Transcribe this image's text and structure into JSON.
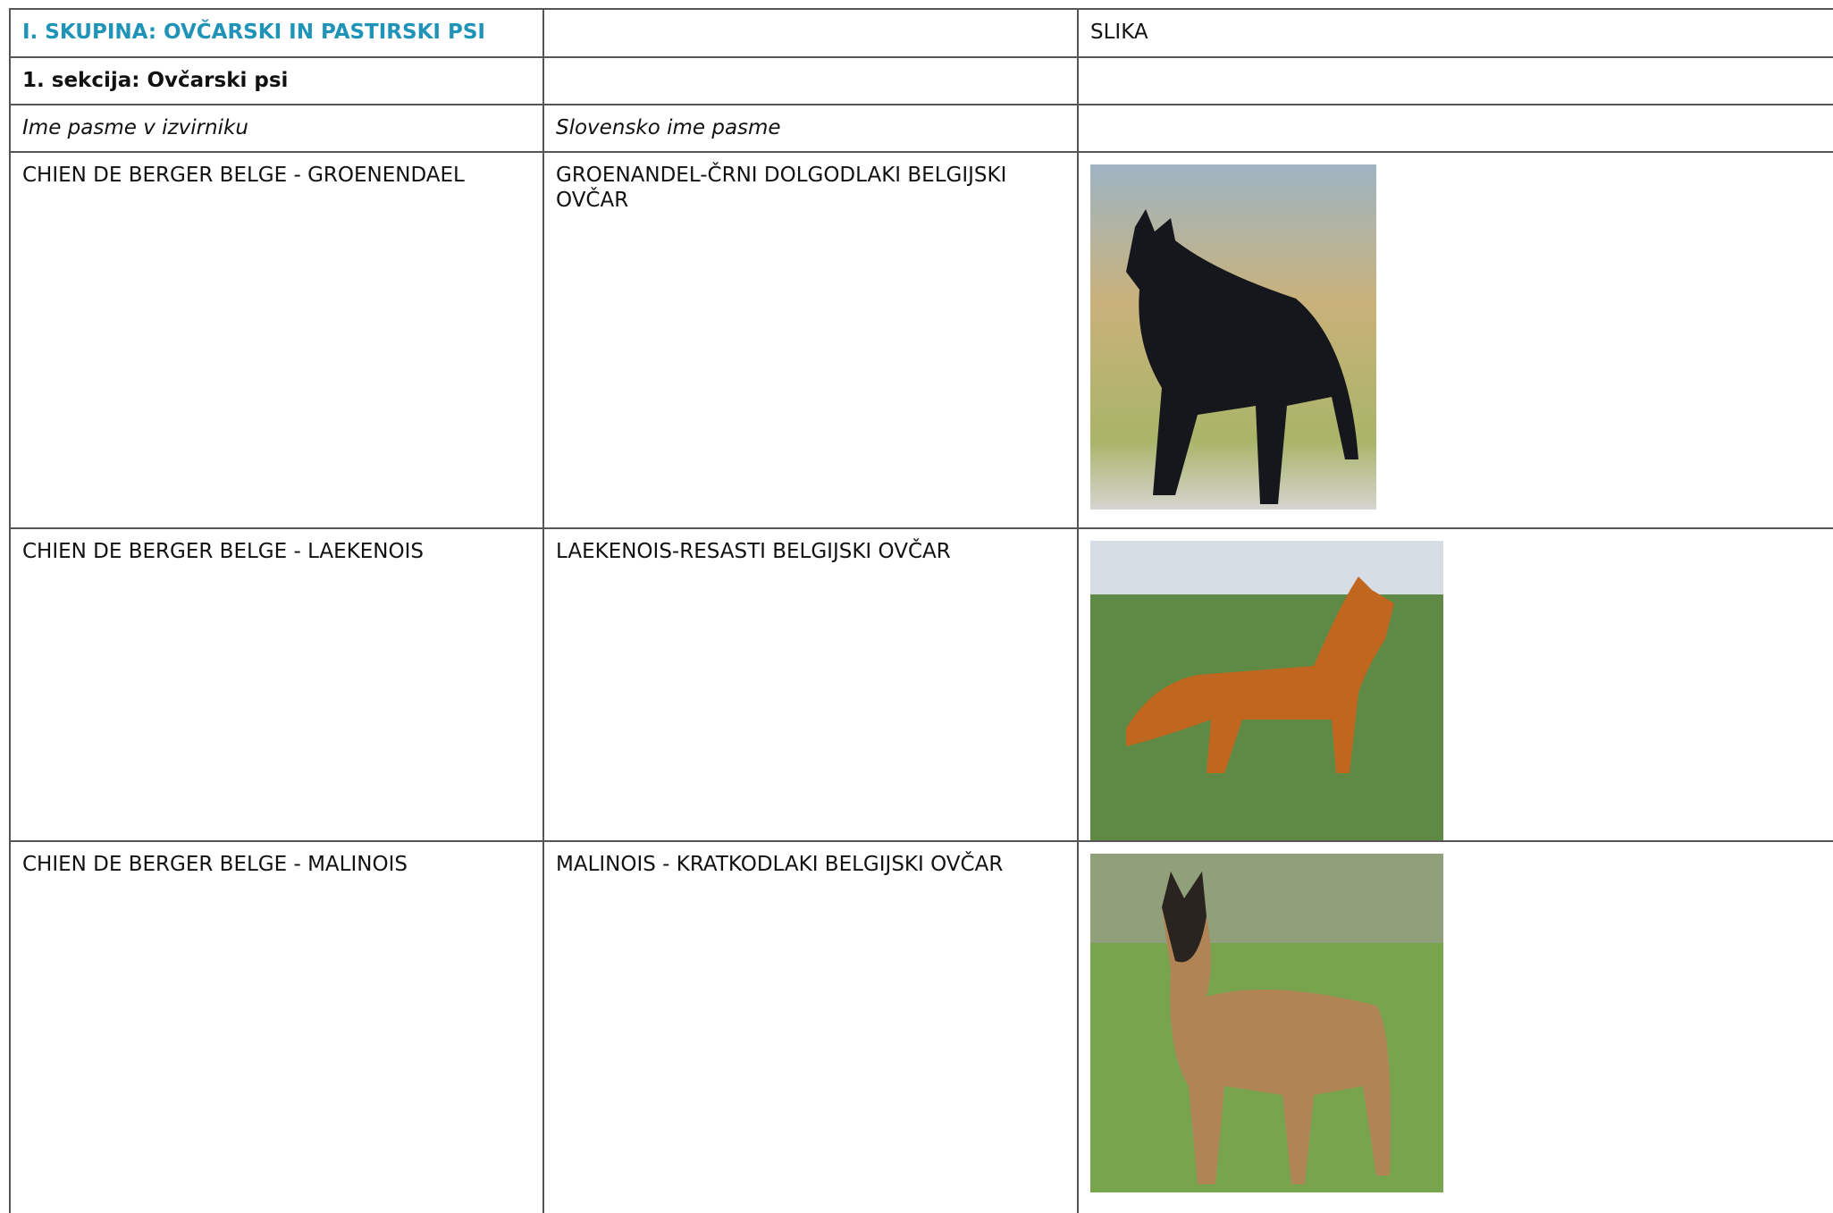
{
  "table": {
    "header": [
      "I. SKUPINA: OVČARSKI IN PASTIRSKI PSI",
      "",
      "SLIKA"
    ],
    "section": "1. sekcija: Ovčarski psi",
    "column_heads": [
      "Ime pasme v izvirniku",
      "Slovensko ime pasme"
    ],
    "rows": [
      [
        "CHIEN DE BERGER BELGE - GROENENDAEL",
        "GROENANDEL-ČRNI DOLGODLAKI BELGIJSKI OVČAR"
      ],
      [
        "CHIEN DE BERGER BELGE - LAEKENOIS",
        "LAEKENOIS-RESASTI BELGIJSKI OVČAR"
      ],
      [
        "CHIEN DE BERGER BELGE - MALINOIS",
        "MALINOIS - KRATKODLAKI BELGIJSKI OVČAR"
      ]
    ]
  }
}
